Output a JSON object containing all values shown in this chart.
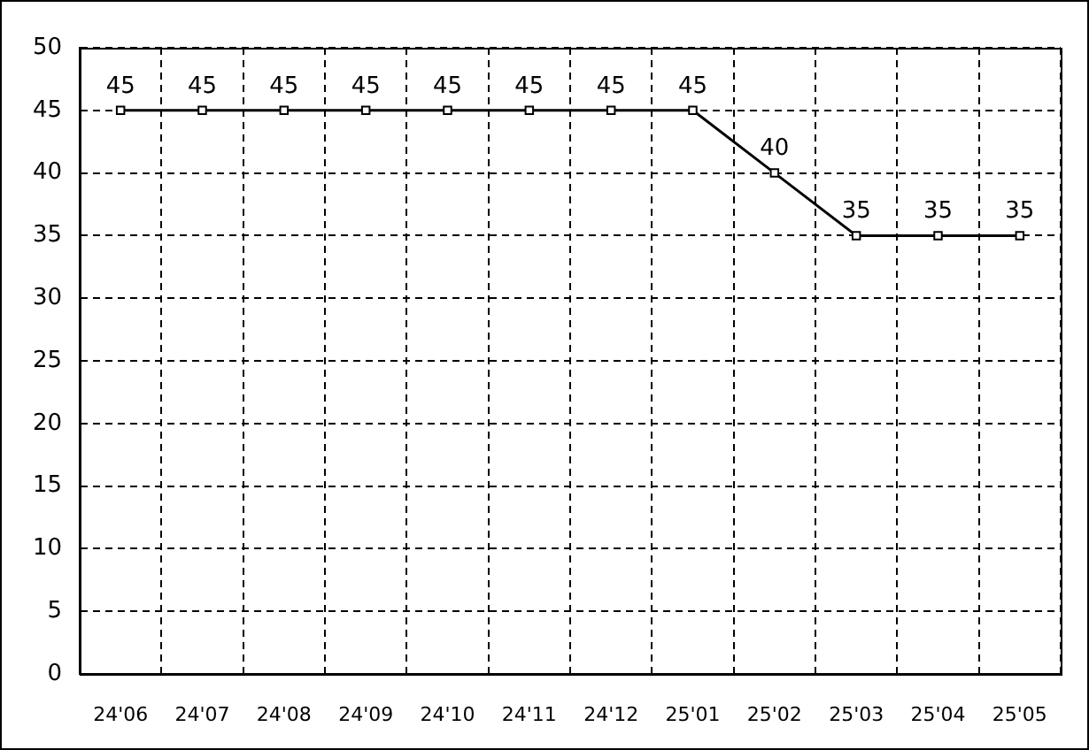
{
  "chart_data": {
    "type": "line",
    "categories": [
      "24'06",
      "24'07",
      "24'08",
      "24'09",
      "24'10",
      "24'11",
      "24'12",
      "25'01",
      "25'02",
      "25'03",
      "25'04",
      "25'05"
    ],
    "series": [
      {
        "color": "#000000",
        "values": [
          45,
          45,
          45,
          45,
          45,
          45,
          45,
          45,
          40,
          35,
          35,
          35
        ]
      }
    ],
    "ylim": [
      0,
      50
    ],
    "yticks": [
      0,
      5,
      10,
      15,
      20,
      25,
      30,
      35,
      40,
      45,
      50
    ],
    "grid": true,
    "legend": false,
    "marker": "square",
    "line_style": "solid",
    "data_labels": true
  }
}
